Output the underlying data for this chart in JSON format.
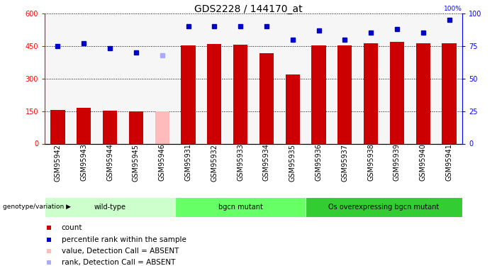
{
  "title": "GDS2228 / 144170_at",
  "samples": [
    "GSM95942",
    "GSM95943",
    "GSM95944",
    "GSM95945",
    "GSM95946",
    "GSM95931",
    "GSM95932",
    "GSM95933",
    "GSM95934",
    "GSM95935",
    "GSM95936",
    "GSM95937",
    "GSM95938",
    "GSM95939",
    "GSM95940",
    "GSM95941"
  ],
  "bar_values": [
    155,
    165,
    152,
    148,
    148,
    453,
    460,
    457,
    415,
    318,
    453,
    453,
    462,
    468,
    462,
    462
  ],
  "bar_absent": [
    false,
    false,
    false,
    false,
    true,
    false,
    false,
    false,
    false,
    false,
    false,
    false,
    false,
    false,
    false,
    false
  ],
  "rank_vals": [
    75,
    77,
    73,
    70,
    68,
    90,
    90,
    90,
    90,
    80,
    87,
    80,
    85,
    88,
    85,
    95
  ],
  "rank_absent": [
    false,
    false,
    false,
    false,
    true,
    false,
    false,
    false,
    false,
    false,
    false,
    false,
    false,
    false,
    false,
    false
  ],
  "groups": [
    {
      "label": "wild-type",
      "start": 0,
      "end": 5,
      "color": "#ccffcc"
    },
    {
      "label": "bgcn mutant",
      "start": 5,
      "end": 10,
      "color": "#66ff66"
    },
    {
      "label": "Os overexpressing bgcn mutant",
      "start": 10,
      "end": 16,
      "color": "#33cc33"
    }
  ],
  "bar_color_normal": "#cc0000",
  "bar_color_absent": "#ffbbbb",
  "rank_color_normal": "#0000cc",
  "rank_color_absent": "#aaaaff",
  "ylim_left": [
    0,
    600
  ],
  "ylim_right": [
    0,
    100
  ],
  "yticks_left": [
    0,
    150,
    300,
    450,
    600
  ],
  "yticks_right": [
    0,
    25,
    50,
    75,
    100
  ],
  "bg_color": "#ffffff",
  "title_fontsize": 10,
  "tick_fontsize": 7,
  "label_fontsize": 7,
  "legend_items": [
    {
      "label": "count",
      "color": "#cc0000",
      "marker": "s"
    },
    {
      "label": "percentile rank within the sample",
      "color": "#0000cc",
      "marker": "s"
    },
    {
      "label": "value, Detection Call = ABSENT",
      "color": "#ffbbbb",
      "marker": "s"
    },
    {
      "label": "rank, Detection Call = ABSENT",
      "color": "#aaaaff",
      "marker": "s"
    }
  ]
}
